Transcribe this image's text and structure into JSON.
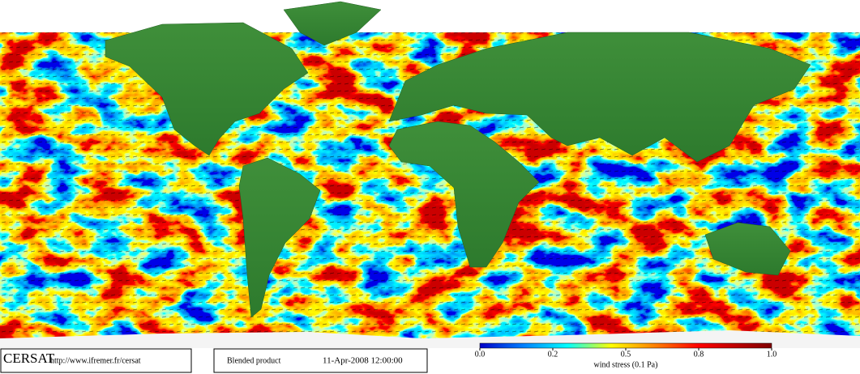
{
  "footer": {
    "logo": "CERSAT",
    "url": "http://www.ifremer.fr/cersat",
    "product": "Blended product",
    "datetime": "11-Apr-2008 12:00:00"
  },
  "colorbar": {
    "ticks": [
      {
        "value": 0,
        "label": "0.0"
      },
      0.2,
      0.5,
      0.8,
      {
        "value": 1,
        "label": "1.0"
      }
    ],
    "label": "wind stress (0.1 Pa)"
  }
}
